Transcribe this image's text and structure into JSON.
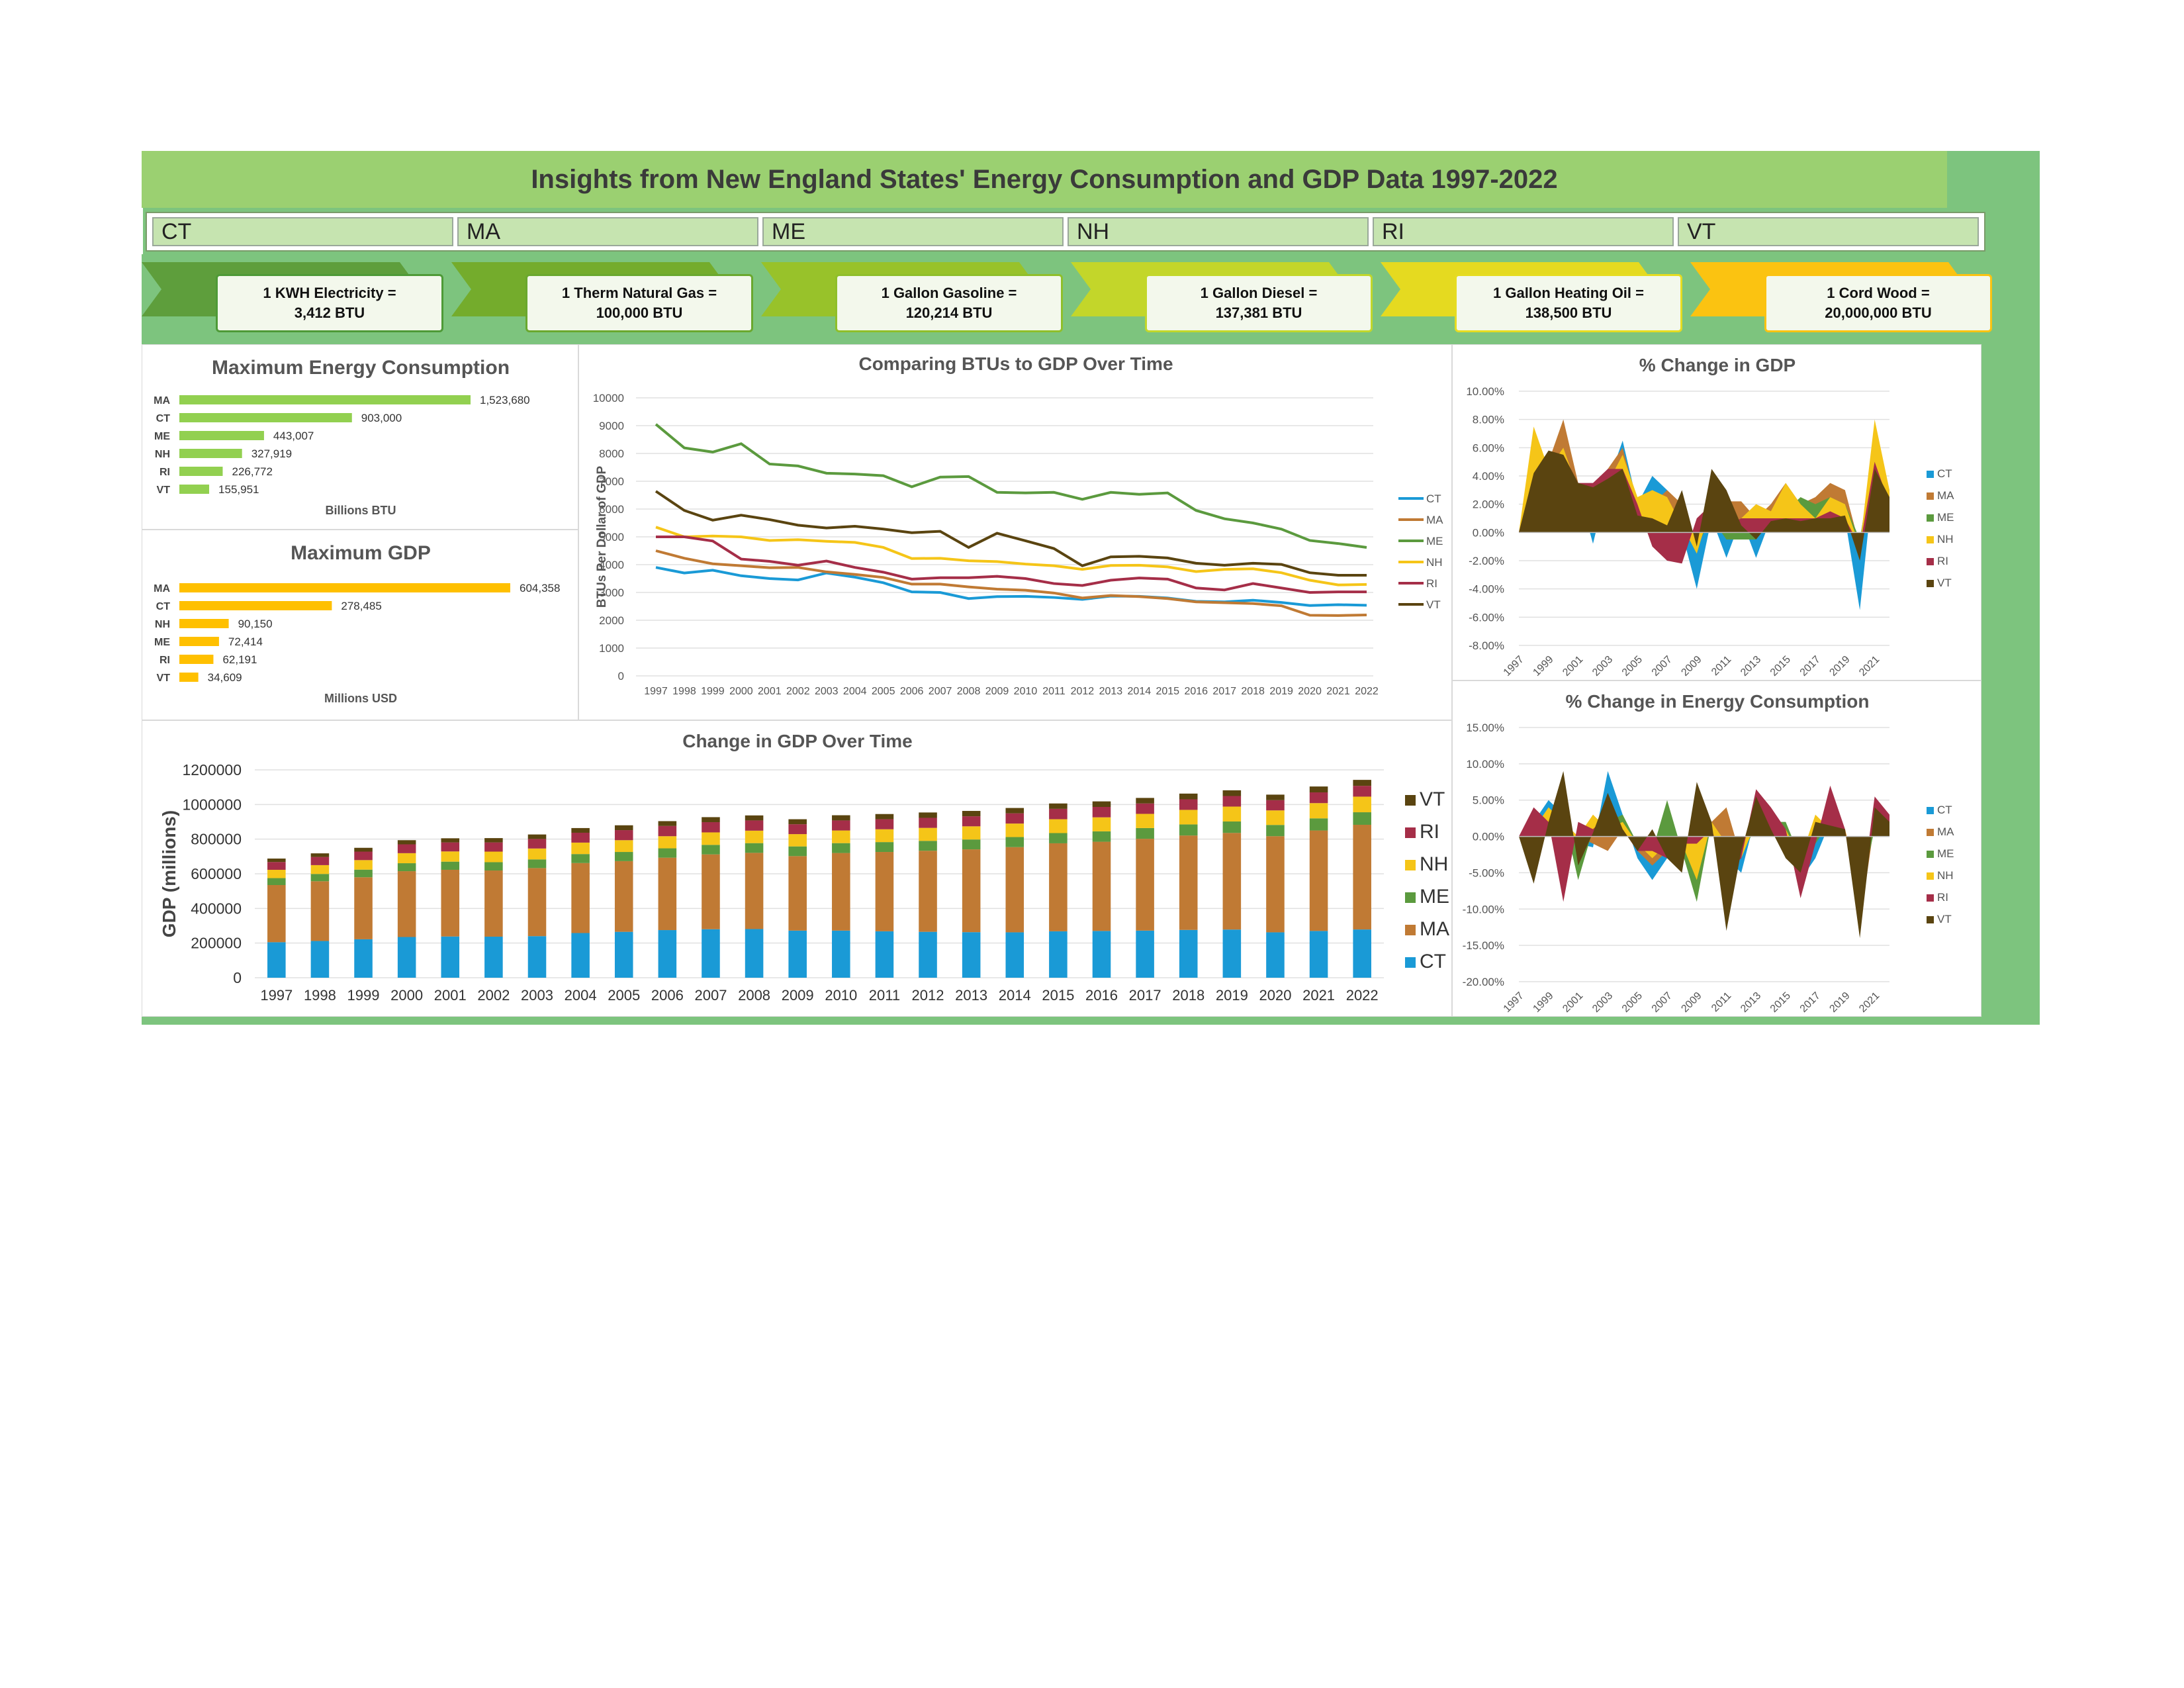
{
  "title": "Insights from New England States' Energy Consumption and GDP Data 1997-2022",
  "states": [
    "CT",
    "MA",
    "ME",
    "NH",
    "RI",
    "VT"
  ],
  "conversions": [
    {
      "line1": "1 KWH Electricity =",
      "line2": "3,412 BTU",
      "color": "#4e9a37",
      "fill": "#5e9e3c"
    },
    {
      "line1": "1 Therm Natural Gas =",
      "line2": "100,000 BTU",
      "color": "#6aa82e",
      "fill": "#74ac2c"
    },
    {
      "line1": "1 Gallon Gasoline =",
      "line2": "120,214 BTU",
      "color": "#8fbf2a",
      "fill": "#98c22a"
    },
    {
      "line1": "1 Gallon Diesel =",
      "line2": "137,381 BTU",
      "color": "#c2d72a",
      "fill": "#c3d62a"
    },
    {
      "line1": "1 Gallon Heating Oil =",
      "line2": "138,500 BTU",
      "color": "#e6dc20",
      "fill": "#e5da20"
    },
    {
      "line1": "1 Cord Wood =",
      "line2": "20,000,000 BTU",
      "color": "#fbc311",
      "fill": "#fbc311"
    }
  ],
  "colors": {
    "CT": "#1a9ad6",
    "MA": "#c07a34",
    "ME": "#5b9a3e",
    "NH": "#f5c518",
    "RI": "#a52e48",
    "VT": "#5a4410"
  },
  "chart_data": [
    {
      "id": "max_energy",
      "type": "bar",
      "orientation": "horizontal",
      "title": "Maximum Energy Consumption",
      "xlabel": "Billions BTU",
      "categories": [
        "MA",
        "CT",
        "ME",
        "NH",
        "RI",
        "VT"
      ],
      "values": [
        1523680,
        903000,
        443007,
        327919,
        226772,
        155951
      ],
      "labels": [
        "1,523,680",
        "903,000",
        "443,007",
        "327,919",
        "226,772",
        "155,951"
      ],
      "color": "#92d050"
    },
    {
      "id": "max_gdp",
      "type": "bar",
      "orientation": "horizontal",
      "title": "Maximum GDP",
      "xlabel": "Millions USD",
      "categories": [
        "MA",
        "CT",
        "NH",
        "ME",
        "RI",
        "VT"
      ],
      "values": [
        604358,
        278485,
        90150,
        72414,
        62191,
        34609
      ],
      "labels": [
        "604,358",
        "278,485",
        "90,150",
        "72,414",
        "62,191",
        "34,609"
      ],
      "color": "#ffc000"
    },
    {
      "id": "btu_gdp",
      "type": "line",
      "title": "Comparing BTUs to GDP Over Time",
      "ylabel": "BTUs Per Dollar of GDP",
      "ylim": [
        0,
        10000
      ],
      "yticks": [
        0,
        1000,
        2000,
        3000,
        4000,
        5000,
        6000,
        7000,
        8000,
        9000,
        10000
      ],
      "x": [
        1997,
        1998,
        1999,
        2000,
        2001,
        2002,
        2003,
        2004,
        2005,
        2006,
        2007,
        2008,
        2009,
        2010,
        2011,
        2012,
        2013,
        2014,
        2015,
        2016,
        2017,
        2018,
        2019,
        2020,
        2021,
        2022
      ],
      "series": [
        {
          "name": "CT",
          "values": [
            3900,
            3700,
            3800,
            3600,
            3500,
            3450,
            3700,
            3550,
            3350,
            3020,
            3000,
            2780,
            2850,
            2860,
            2820,
            2750,
            2870,
            2860,
            2800,
            2680,
            2660,
            2720,
            2640,
            2530,
            2560,
            2540
          ]
        },
        {
          "name": "MA",
          "values": [
            4500,
            4230,
            4030,
            3960,
            3890,
            3900,
            3740,
            3650,
            3540,
            3300,
            3300,
            3200,
            3120,
            3080,
            2980,
            2800,
            2890,
            2850,
            2780,
            2660,
            2630,
            2600,
            2520,
            2180,
            2170,
            2190
          ]
        },
        {
          "name": "ME",
          "values": [
            9050,
            8200,
            8050,
            8350,
            7620,
            7550,
            7290,
            7260,
            7200,
            6800,
            7150,
            7170,
            6600,
            6580,
            6600,
            6350,
            6600,
            6530,
            6580,
            5950,
            5650,
            5500,
            5280,
            4870,
            4760,
            4620
          ]
        },
        {
          "name": "NH",
          "values": [
            5350,
            5000,
            5030,
            5000,
            4870,
            4900,
            4840,
            4800,
            4620,
            4220,
            4230,
            4140,
            4110,
            4020,
            3960,
            3830,
            3970,
            3980,
            3920,
            3750,
            3830,
            3850,
            3710,
            3440,
            3270,
            3290
          ]
        },
        {
          "name": "RI",
          "values": [
            5000,
            5000,
            4850,
            4200,
            4120,
            3980,
            4130,
            3900,
            3730,
            3480,
            3530,
            3530,
            3580,
            3500,
            3320,
            3250,
            3440,
            3520,
            3480,
            3160,
            3090,
            3320,
            3160,
            3000,
            3020,
            3020
          ]
        },
        {
          "name": "VT",
          "values": [
            6640,
            5950,
            5600,
            5780,
            5620,
            5420,
            5320,
            5380,
            5280,
            5150,
            5200,
            4620,
            5130,
            4860,
            4580,
            3960,
            4280,
            4300,
            4240,
            4050,
            3980,
            4050,
            4010,
            3710,
            3620,
            3620
          ]
        }
      ]
    },
    {
      "id": "gdp_change",
      "type": "area",
      "title": "% Change in GDP",
      "ylim": [
        -0.08,
        0.1
      ],
      "yticks": [
        "10.00%",
        "8.00%",
        "6.00%",
        "4.00%",
        "2.00%",
        "0.00%",
        "-2.00%",
        "-4.00%",
        "-6.00%",
        "-8.00%"
      ],
      "xticks": [
        "1997",
        "1999",
        "2001",
        "2003",
        "2005",
        "2007",
        "2009",
        "2011",
        "2013",
        "2015",
        "2017",
        "2019",
        "2021"
      ],
      "x": [
        1997,
        1998,
        1999,
        2000,
        2001,
        2002,
        2003,
        2004,
        2005,
        2006,
        2007,
        2008,
        2009,
        2010,
        2011,
        2012,
        2013,
        2014,
        2015,
        2016,
        2017,
        2018,
        2019,
        2020,
        2021,
        2022
      ],
      "series": [
        {
          "name": "CT",
          "values": [
            0,
            0.04,
            0.05,
            0.055,
            0.03,
            -0.008,
            0.035,
            0.065,
            0.02,
            0.04,
            0.03,
            0,
            -0.04,
            0.01,
            -0.018,
            0.01,
            -0.018,
            0.01,
            0.03,
            0.01,
            0.02,
            0.02,
            0.01,
            -0.055,
            0.045,
            0.03
          ]
        },
        {
          "name": "MA",
          "values": [
            0,
            0.045,
            0.05,
            0.08,
            0.035,
            0.03,
            0.045,
            0.06,
            0.02,
            0.02,
            0.03,
            0.02,
            -0.01,
            0.02,
            0.022,
            0.022,
            0.01,
            0.02,
            0.035,
            0.02,
            0.025,
            0.035,
            0.03,
            -0.01,
            0.07,
            0.025
          ]
        },
        {
          "name": "ME",
          "values": [
            0,
            0.04,
            0.05,
            0.045,
            0.03,
            0.035,
            0.035,
            0.04,
            0.015,
            0.01,
            0.01,
            0.01,
            -0.01,
            0.01,
            -0.005,
            -0.005,
            -0.005,
            0.01,
            0.015,
            0.025,
            0.02,
            0.025,
            0.02,
            -0.005,
            0.06,
            0.02
          ]
        },
        {
          "name": "NH",
          "values": [
            0,
            0.075,
            0.045,
            0.06,
            0.03,
            0.03,
            0.035,
            0.055,
            0.025,
            0.03,
            0.025,
            0.005,
            -0.015,
            0.02,
            0.005,
            0.01,
            0.02,
            0.015,
            0.035,
            0.02,
            0.01,
            0.025,
            0.02,
            -0.01,
            0.08,
            0.03
          ]
        },
        {
          "name": "RI",
          "values": [
            0,
            0.04,
            0.045,
            0.055,
            0.035,
            0.035,
            0.045,
            0.045,
            0.02,
            -0.01,
            -0.02,
            -0.022,
            0.01,
            0.02,
            0.005,
            0.01,
            0.01,
            0.01,
            0.01,
            0.01,
            0.01,
            0.015,
            0.01,
            -0.01,
            0.05,
            0.02
          ]
        },
        {
          "name": "VT",
          "values": [
            0,
            0.042,
            0.058,
            0.055,
            0.035,
            0.032,
            0.038,
            0.045,
            0.012,
            0.01,
            0.005,
            0.03,
            -0.01,
            0.045,
            0.03,
            0.005,
            -0.005,
            0.008,
            0.01,
            0.008,
            0.01,
            0.01,
            0.012,
            -0.02,
            0.045,
            0.025
          ]
        }
      ]
    },
    {
      "id": "energy_change",
      "type": "area",
      "title": "% Change in Energy Consumption",
      "ylim": [
        -0.2,
        0.15
      ],
      "yticks": [
        "15.00%",
        "10.00%",
        "5.00%",
        "0.00%",
        "-5.00%",
        "-10.00%",
        "-15.00%",
        "-20.00%"
      ],
      "xticks": [
        "1997",
        "1999",
        "2001",
        "2003",
        "2005",
        "2007",
        "2009",
        "2011",
        "2013",
        "2015",
        "2017",
        "2019",
        "2021"
      ],
      "x": [
        1997,
        1998,
        1999,
        2000,
        2001,
        2002,
        2003,
        2004,
        2005,
        2006,
        2007,
        2008,
        2009,
        2010,
        2011,
        2012,
        2013,
        2014,
        2015,
        2016,
        2017,
        2018,
        2019,
        2020,
        2021,
        2022
      ],
      "series": [
        {
          "name": "CT",
          "values": [
            0,
            0.02,
            0.05,
            0.03,
            -0.01,
            -0.015,
            0.09,
            0.03,
            -0.03,
            -0.06,
            -0.03,
            -0.02,
            -0.07,
            0.02,
            -0.03,
            -0.05,
            0.03,
            0.02,
            0.01,
            -0.06,
            -0.03,
            0.02,
            0.01,
            -0.1,
            0.03,
            0.01
          ]
        },
        {
          "name": "MA",
          "values": [
            0,
            0.02,
            0.03,
            0.01,
            0,
            -0.01,
            -0.02,
            0.01,
            -0.02,
            -0.04,
            -0.02,
            -0.01,
            -0.06,
            0.02,
            0.04,
            -0.03,
            0.04,
            0.02,
            -0.02,
            -0.05,
            0,
            0.02,
            0.01,
            -0.12,
            0.02,
            0.01
          ]
        },
        {
          "name": "ME",
          "values": [
            0,
            0.01,
            0.02,
            0.03,
            -0.06,
            0.01,
            0.02,
            0.03,
            -0.01,
            -0.02,
            0.05,
            -0.02,
            -0.09,
            0.02,
            -0.02,
            -0.02,
            0.01,
            0.02,
            0.02,
            -0.03,
            -0.01,
            0.02,
            0.01,
            -0.08,
            0.01,
            0
          ]
        },
        {
          "name": "NH",
          "values": [
            0,
            0.01,
            0.04,
            0.02,
            0,
            0.03,
            0.01,
            0.02,
            -0.01,
            -0.03,
            -0.01,
            -0.01,
            -0.06,
            0.02,
            -0.01,
            -0.03,
            0.02,
            0.01,
            0.01,
            -0.03,
            0.03,
            0.01,
            0.01,
            -0.07,
            0.02,
            0.01
          ]
        },
        {
          "name": "RI",
          "values": [
            0,
            0.04,
            0.02,
            -0.09,
            0.02,
            0.01,
            0.03,
            0.01,
            -0.02,
            -0.02,
            -0.03,
            -0.01,
            -0.01,
            0.01,
            -0.05,
            -0.03,
            0.065,
            0.04,
            0.01,
            -0.085,
            -0.01,
            0.07,
            0.01,
            -0.1,
            0.055,
            0.03
          ]
        },
        {
          "name": "VT",
          "values": [
            0,
            -0.065,
            0.02,
            0.09,
            -0.04,
            0.005,
            0.06,
            0.01,
            -0.02,
            0.01,
            -0.03,
            -0.05,
            0.075,
            0.02,
            -0.13,
            -0.02,
            0.055,
            0.01,
            -0.03,
            -0.05,
            0.02,
            0.015,
            0.01,
            -0.14,
            0.04,
            0.02
          ]
        }
      ]
    },
    {
      "id": "gdp_stack",
      "type": "bar",
      "stacked": true,
      "title": "Change in GDP Over Time",
      "ylabel": "GDP (millions)",
      "ylim": [
        0,
        1200000
      ],
      "yticks": [
        0,
        200000,
        400000,
        600000,
        800000,
        1000000,
        1200000
      ],
      "categories": [
        "1997",
        "1998",
        "1999",
        "2000",
        "2001",
        "2002",
        "2003",
        "2004",
        "2005",
        "2006",
        "2007",
        "2008",
        "2009",
        "2010",
        "2011",
        "2012",
        "2013",
        "2014",
        "2015",
        "2016",
        "2017",
        "2018",
        "2019",
        "2020",
        "2021",
        "2022"
      ],
      "series": [
        {
          "name": "CT",
          "values": [
            205000,
            212000,
            222000,
            235000,
            238000,
            237000,
            240000,
            258000,
            265000,
            275000,
            280000,
            281000,
            272000,
            272000,
            268000,
            265000,
            263000,
            262000,
            268000,
            270000,
            272000,
            276000,
            278000,
            262000,
            270000,
            278485
          ]
        },
        {
          "name": "MA",
          "values": [
            330000,
            345000,
            358000,
            380000,
            385000,
            382000,
            393000,
            404000,
            408000,
            418000,
            432000,
            440000,
            430000,
            448000,
            458000,
            468000,
            478000,
            492000,
            508000,
            515000,
            530000,
            545000,
            558000,
            555000,
            580000,
            604358
          ]
        },
        {
          "name": "ME",
          "values": [
            40000,
            42000,
            44000,
            46000,
            47000,
            48000,
            50000,
            52000,
            53000,
            54000,
            55000,
            56000,
            56000,
            57000,
            57000,
            57000,
            57000,
            58000,
            59000,
            60000,
            62000,
            64000,
            66000,
            65000,
            70000,
            72414
          ]
        },
        {
          "name": "NH",
          "values": [
            48000,
            51000,
            55000,
            58000,
            59000,
            61000,
            63000,
            66000,
            68000,
            70000,
            72000,
            72000,
            71000,
            73000,
            74000,
            75000,
            76000,
            78000,
            80000,
            81000,
            82000,
            84000,
            86000,
            84000,
            88000,
            90150
          ]
        },
        {
          "name": "RI",
          "values": [
            45000,
            47000,
            49000,
            51000,
            52000,
            53000,
            55000,
            57000,
            58000,
            59000,
            59000,
            59000,
            57000,
            58000,
            58000,
            58000,
            58000,
            59000,
            60000,
            60000,
            60000,
            61000,
            61000,
            59000,
            62000,
            62191
          ]
        },
        {
          "name": "VT",
          "values": [
            20000,
            21000,
            22000,
            24000,
            24000,
            25000,
            26000,
            27000,
            28000,
            28000,
            29000,
            29000,
            29000,
            30000,
            30000,
            31000,
            31000,
            31000,
            31000,
            32000,
            32000,
            33000,
            33000,
            32000,
            34000,
            34609
          ]
        }
      ]
    }
  ]
}
